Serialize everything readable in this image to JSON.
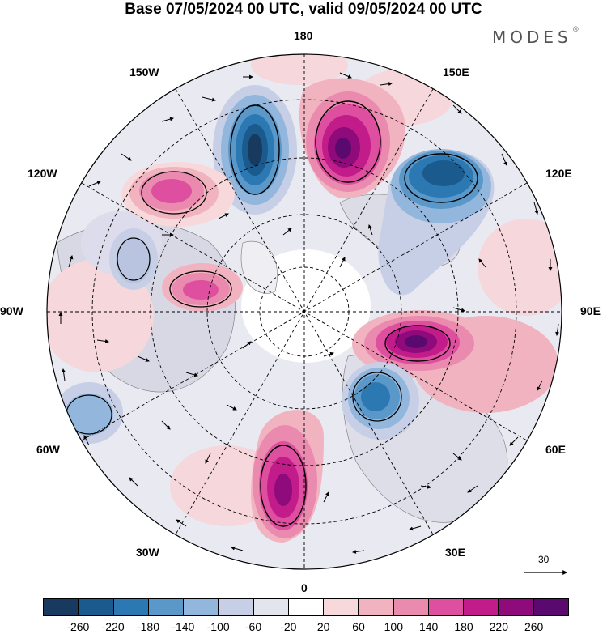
{
  "title": "Base 07/05/2024 00 UTC, valid 09/05/2024 00 UTC",
  "brand": "MODES",
  "brand_mark": "®",
  "map_labels": {
    "top": "180",
    "bottom": "0",
    "left": "90W",
    "right": "90E",
    "upper_left": "150W",
    "upper_right": "150E",
    "mid_upper_left": "120W",
    "mid_upper_right": "120E",
    "mid_lower_left": "60W",
    "mid_lower_right": "60E",
    "lower_left": "30W",
    "lower_right": "30E"
  },
  "reference_vector": {
    "value": "30"
  },
  "colorbar": {
    "colors": [
      "#173a5e",
      "#1b5a8c",
      "#2b78b3",
      "#5a98c9",
      "#93b6dc",
      "#c6cfe6",
      "#e4e4ef",
      "#ffffff",
      "#f7d9dc",
      "#f1b3bf",
      "#ea8aae",
      "#de4fa0",
      "#c21c8a",
      "#8f0a7a",
      "#5a0a6e"
    ],
    "ticks": [
      "-260",
      "-220",
      "-180",
      "-140",
      "-100",
      "-60",
      "-20",
      "20",
      "60",
      "100",
      "140",
      "180",
      "220",
      "260"
    ]
  },
  "anomalies": [
    {
      "name": "neg-1",
      "value": -260
    },
    {
      "name": "pos-1",
      "value": 260
    },
    {
      "name": "neg-2",
      "value": -220
    },
    {
      "name": "pos-2",
      "value": 180
    },
    {
      "name": "pos-3",
      "value": 180
    },
    {
      "name": "pos-4",
      "value": 260
    },
    {
      "name": "neg-3",
      "value": -180
    },
    {
      "name": "pos-5",
      "value": 220
    },
    {
      "name": "neg-4",
      "value": -100
    },
    {
      "name": "neg-5",
      "value": -100
    },
    {
      "name": "pos-6",
      "value": 100
    }
  ]
}
